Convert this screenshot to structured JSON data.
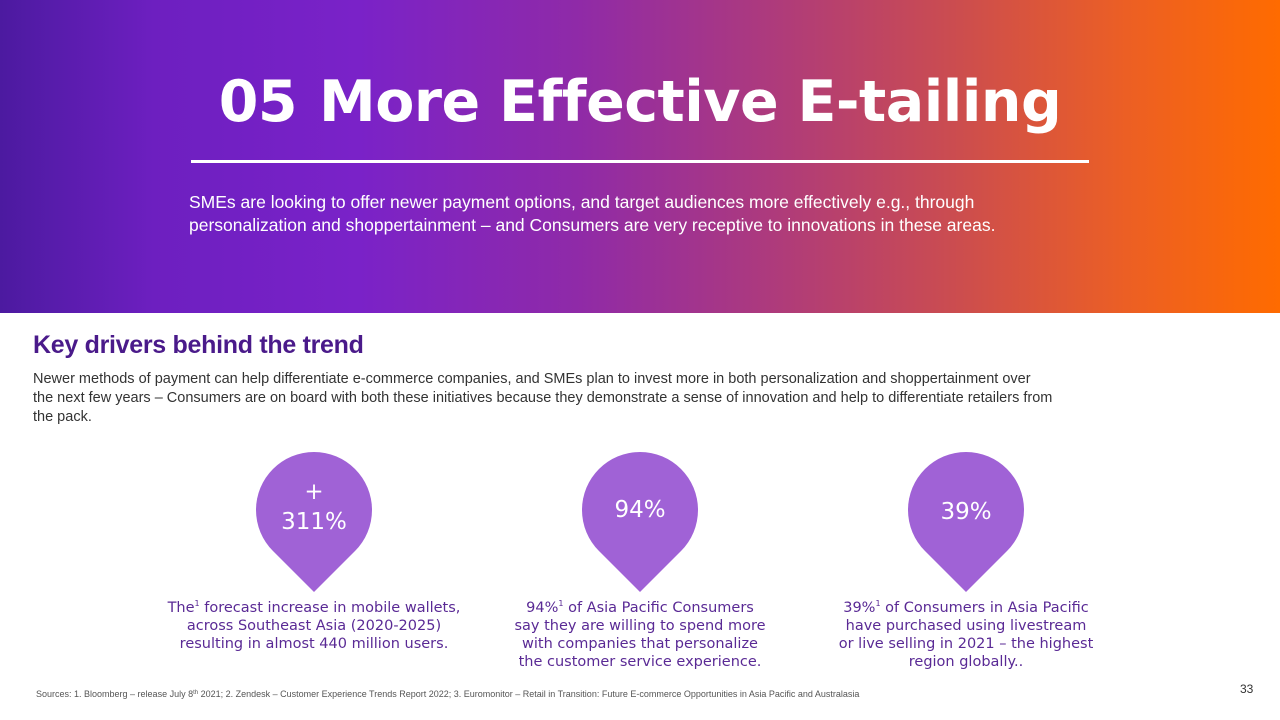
{
  "header": {
    "number": "05",
    "title": "More Effective E-tailing",
    "subtitle_lines": [
      "SMEs are looking to offer newer payment options, and target audiences more effectively e.g., through",
      "personalization and shoppertainment – and Consumers are very receptive to innovations in these areas."
    ]
  },
  "section": {
    "title": "Key drivers behind the trend",
    "intro_lines": [
      "Newer methods of payment can help differentiate e-commerce companies, and SMEs plan to invest more in both personalization and shoppertainment over",
      "the next few years – Consumers are on board with both these initiatives because they demonstrate a sense of innovation and help to differentiate retailers from",
      "the pack."
    ]
  },
  "stats": [
    {
      "line1": "+",
      "line2": "311%",
      "desc_lines": [
        {
          "pre": "The",
          "sup": "1",
          "post": " forecast increase in mobile wallets,"
        },
        {
          "pre": "across Southeast Asia (2020-2025)",
          "sup": "",
          "post": ""
        },
        {
          "pre": "resulting in almost 440 million users.",
          "sup": "",
          "post": ""
        }
      ]
    },
    {
      "line1": "94%",
      "desc_lines": [
        {
          "pre": "94%",
          "sup": "1",
          "post": " of Asia Pacific Consumers"
        },
        {
          "pre": "say they are willing to spend more",
          "sup": "",
          "post": ""
        },
        {
          "pre": "with companies that personalize",
          "sup": "",
          "post": ""
        },
        {
          "pre": "the customer service experience.",
          "sup": "",
          "post": ""
        }
      ]
    },
    {
      "line1": "39%",
      "desc_lines": [
        {
          "pre": "39%",
          "sup": "1",
          "post": " of Consumers in Asia Pacific"
        },
        {
          "pre": "have purchased using livestream",
          "sup": "",
          "post": ""
        },
        {
          "pre": "or live selling in 2021 – the highest",
          "sup": "",
          "post": ""
        },
        {
          "pre": "region globally..",
          "sup": "",
          "post": ""
        }
      ]
    }
  ],
  "colors": {
    "pin": "#a062d6",
    "heading": "#4a1a8a",
    "desc": "#5a2a95"
  },
  "footer": {
    "sources_pre": "Sources: 1. Bloomberg – release July 8",
    "sources_sup": "th",
    "sources_post": " 2021; 2. Zendesk – Customer Experience Trends Report 2022; 3. Euromonitor – Retail in Transition: Future E-commerce Opportunities in Asia Pacific and Australasia",
    "page_number": "33"
  }
}
